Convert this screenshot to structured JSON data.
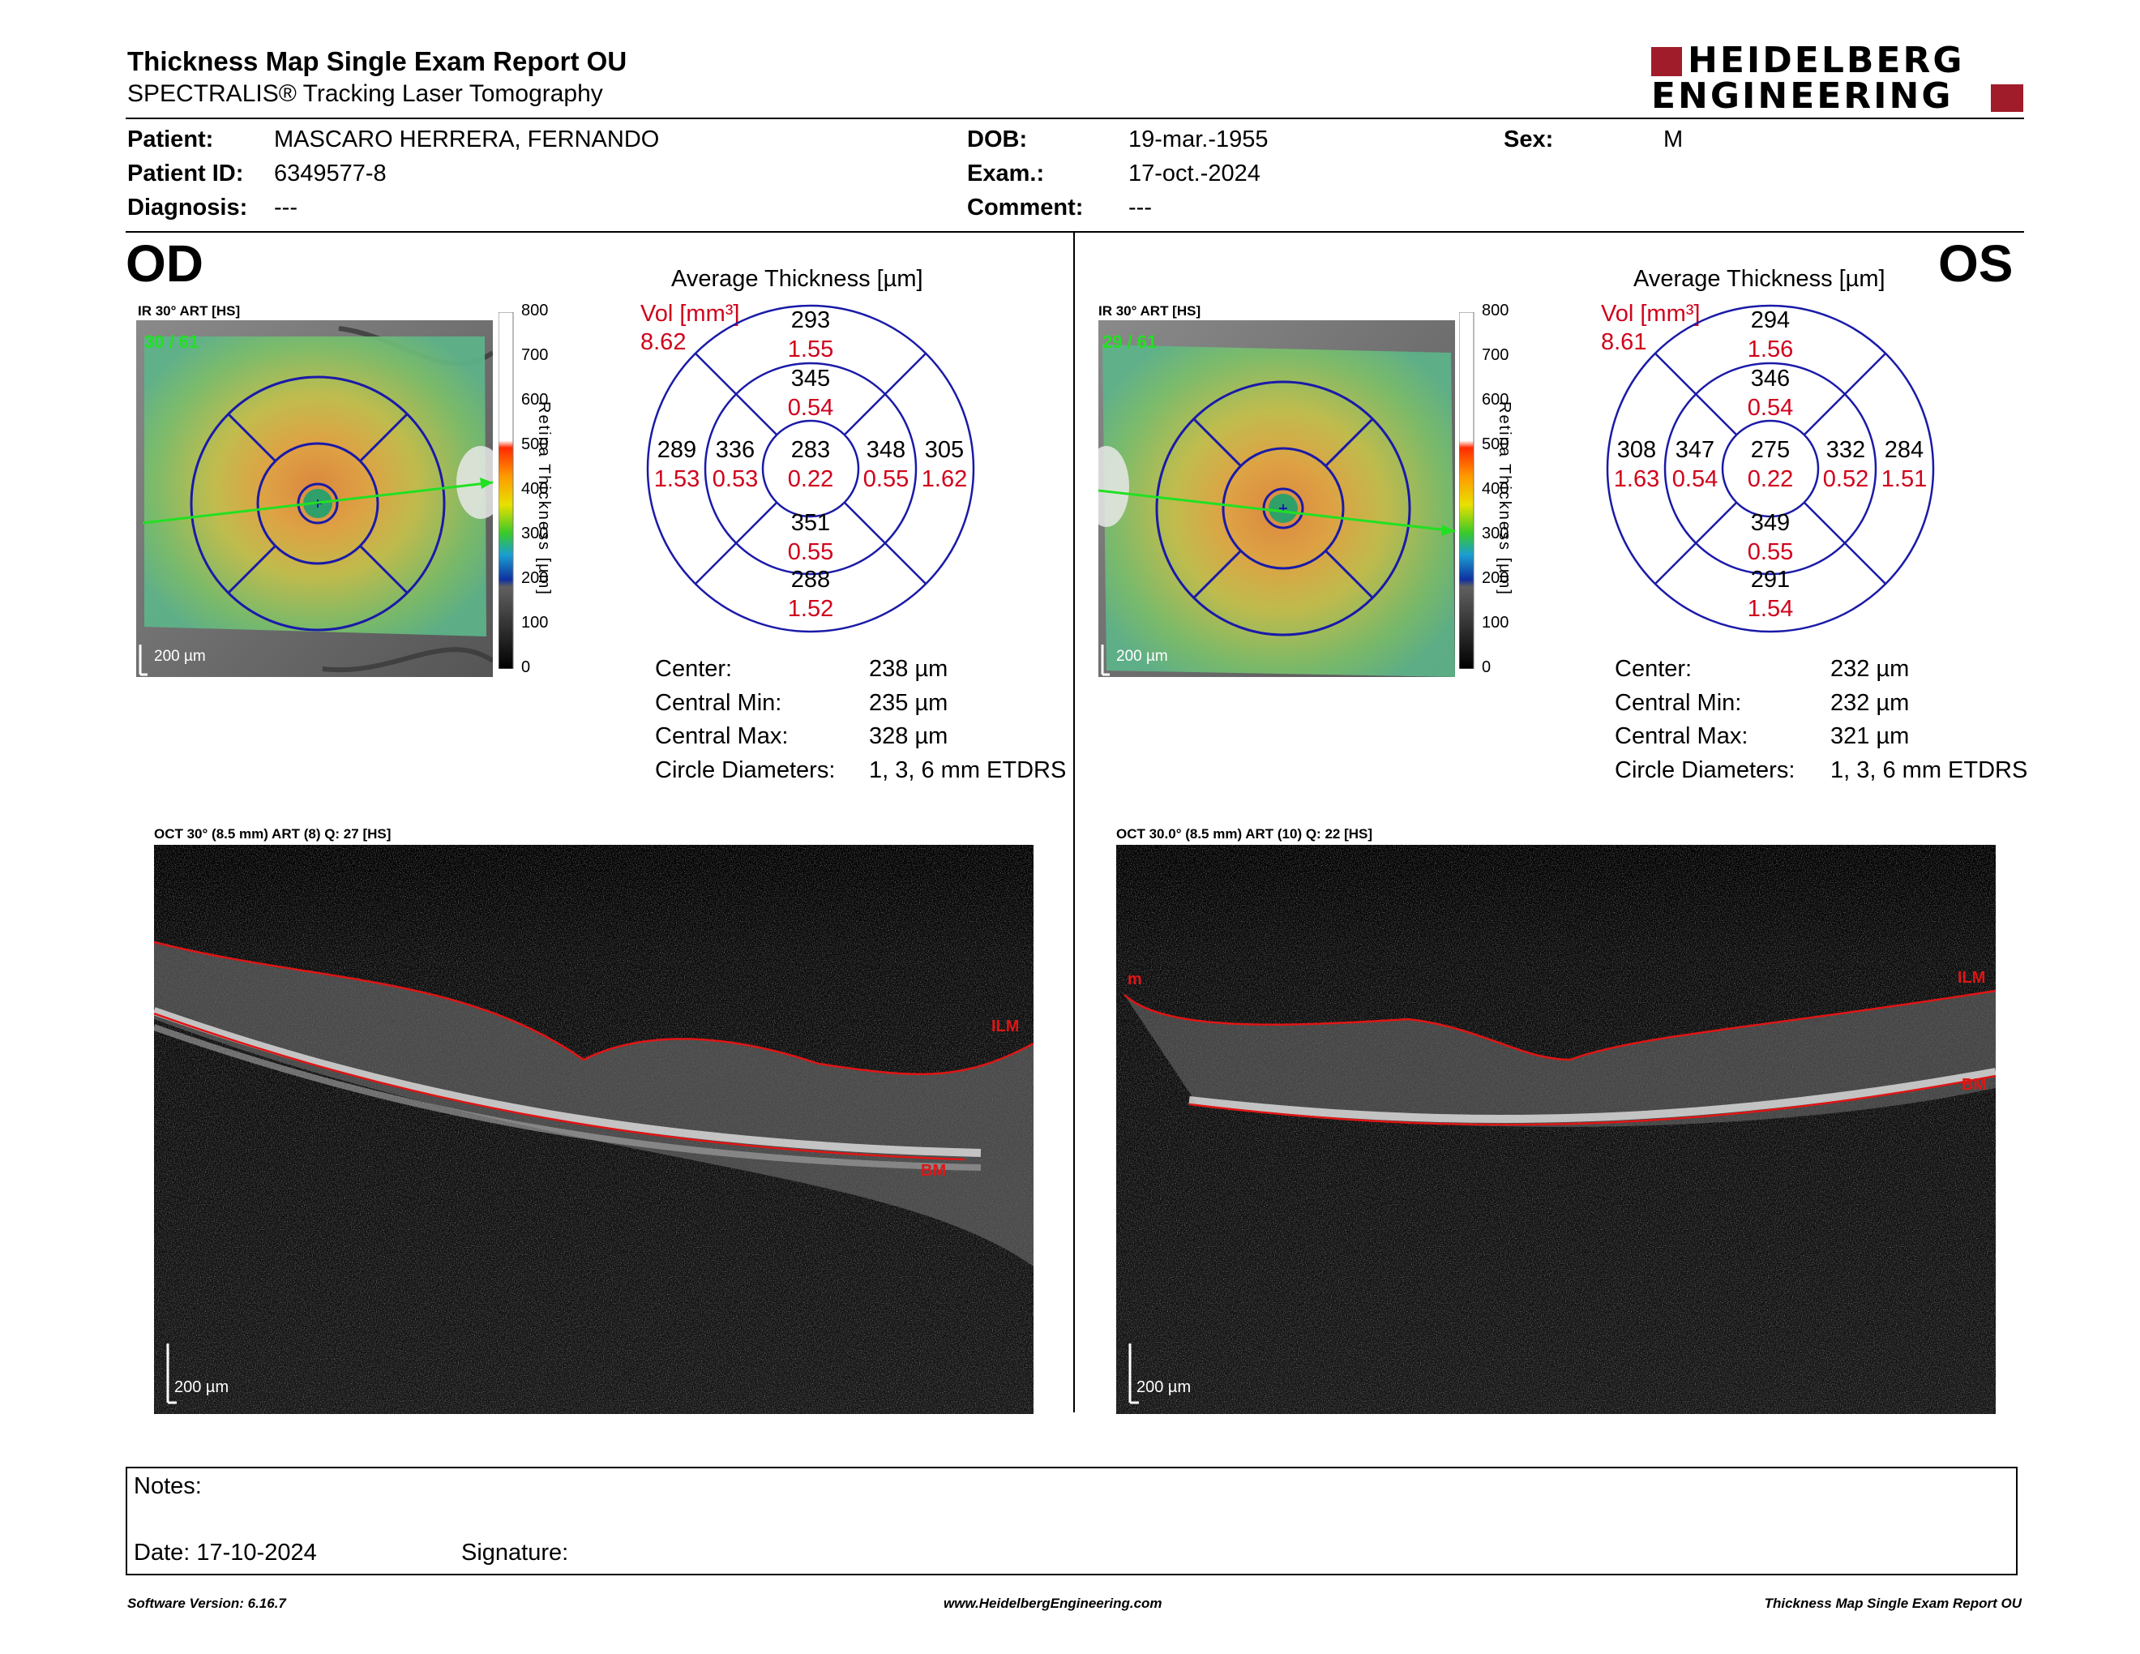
{
  "header": {
    "title": "Thickness Map Single Exam Report OU",
    "subtitle": "SPECTRALIS® Tracking Laser Tomography",
    "logo_line1": "HEIDELBERG",
    "logo_line2": "ENGINEERING"
  },
  "patient": {
    "patient_label": "Patient:",
    "patient_value": "MASCARO HERRERA, FERNANDO",
    "id_label": "Patient ID:",
    "id_value": "6349577-8",
    "diag_label": "Diagnosis:",
    "diag_value": "---",
    "dob_label": "DOB:",
    "dob_value": "19-mar.-1955",
    "exam_label": "Exam.:",
    "exam_value": "17-oct.-2024",
    "comment_label": "Comment:",
    "comment_value": "---",
    "sex_label": "Sex:",
    "sex_value": "M"
  },
  "colorbar": {
    "ticks": [
      "800",
      "700",
      "600",
      "500",
      "400",
      "300",
      "200",
      "100",
      "0"
    ],
    "title": "Retina Thickness [µm]"
  },
  "od": {
    "eye": "OD",
    "ir_label": "IR 30° ART [HS]",
    "ir_overlay": "30 / 61",
    "scale": "200 µm",
    "avg_title": "Average Thickness [µm]",
    "vol_label": "Vol [mm³]",
    "vol_value": "8.62",
    "sectors": {
      "outer_sup": {
        "t": "293",
        "v": "1.55"
      },
      "inner_sup": {
        "t": "345",
        "v": "0.54"
      },
      "outer_temp": {
        "t": "289",
        "v": "1.53"
      },
      "inner_temp": {
        "t": "336",
        "v": "0.53"
      },
      "center": {
        "t": "283",
        "v": "0.22"
      },
      "inner_nas": {
        "t": "348",
        "v": "0.55"
      },
      "outer_nas": {
        "t": "305",
        "v": "1.62"
      },
      "inner_inf": {
        "t": "351",
        "v": "0.55"
      },
      "outer_inf": {
        "t": "288",
        "v": "1.52"
      }
    },
    "stats": {
      "center_l": "Center:",
      "center_v": "238 µm",
      "min_l": "Central Min:",
      "min_v": "235 µm",
      "max_l": "Central Max:",
      "max_v": "328 µm",
      "diam_l": "Circle Diameters:",
      "diam_v": "1, 3, 6 mm ETDRS"
    },
    "oct_label": "OCT 30° (8.5 mm) ART (8) Q: 27 [HS]",
    "oct_ilm": "ILM",
    "oct_bm": "BM",
    "oct_scale": "200 µm"
  },
  "os": {
    "eye": "OS",
    "ir_label": "IR 30° ART [HS]",
    "ir_overlay": "29 / 61",
    "scale": "200 µm",
    "avg_title": "Average Thickness [µm]",
    "vol_label": "Vol [mm³]",
    "vol_value": "8.61",
    "sectors": {
      "outer_sup": {
        "t": "294",
        "v": "1.56"
      },
      "inner_sup": {
        "t": "346",
        "v": "0.54"
      },
      "outer_temp": {
        "t": "308",
        "v": "1.63"
      },
      "inner_temp": {
        "t": "347",
        "v": "0.54"
      },
      "center": {
        "t": "275",
        "v": "0.22"
      },
      "inner_nas": {
        "t": "332",
        "v": "0.52"
      },
      "outer_nas": {
        "t": "284",
        "v": "1.51"
      },
      "inner_inf": {
        "t": "349",
        "v": "0.55"
      },
      "outer_inf": {
        "t": "291",
        "v": "1.54"
      }
    },
    "stats": {
      "center_l": "Center:",
      "center_v": "232 µm",
      "min_l": "Central Min:",
      "min_v": "232 µm",
      "max_l": "Central Max:",
      "max_v": "321 µm",
      "diam_l": "Circle Diameters:",
      "diam_v": "1, 3, 6 mm ETDRS"
    },
    "oct_label": "OCT 30.0° (8.5 mm) ART (10) Q: 22 [HS]",
    "oct_ilm": "ILM",
    "oct_bm": "BM",
    "oct_m": "m",
    "oct_scale": "200 µm"
  },
  "notes": {
    "notes_label": "Notes:",
    "date_label": "Date: 17-10-2024",
    "signature_label": "Signature:"
  },
  "footer": {
    "software": "Software Version: 6.16.7",
    "website": "www.HeidelbergEngineering.com",
    "report": "Thickness Map Single Exam Report OU"
  },
  "colors": {
    "red_text": "#d0021b",
    "etdrs_blue": "#1a1aa8",
    "logo_red": "#a01c2a"
  }
}
